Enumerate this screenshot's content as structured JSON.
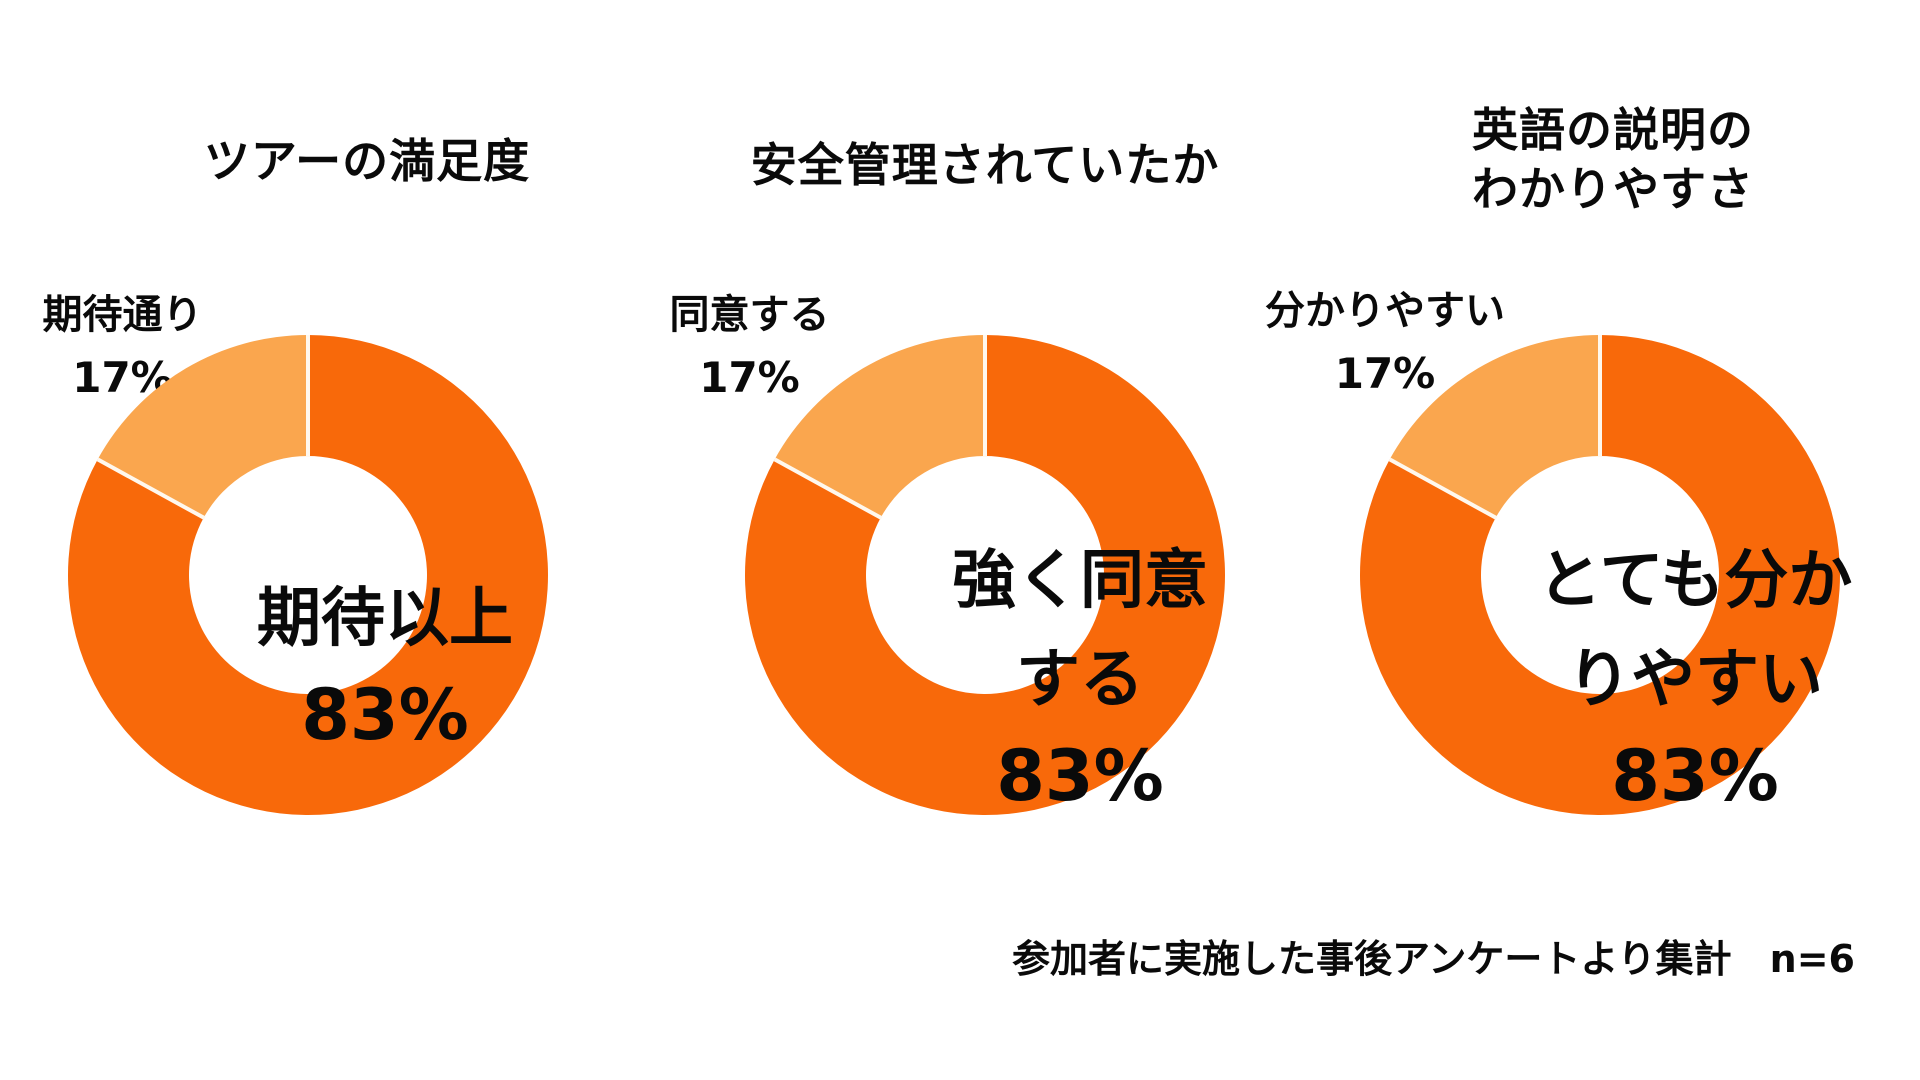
{
  "colors": {
    "background": "#FFFFFF",
    "segment_main": "#F8690A",
    "segment_light": "#FAA64E",
    "divider": "#FFF8EE",
    "text": "#0A0A0A"
  },
  "chart_data": [
    {
      "type": "donut",
      "title": "ツアーの満足度",
      "title_lines": [
        "ツアーの満足度"
      ],
      "segments": [
        {
          "label": "期待以上",
          "value": 83,
          "color": "#F8690A"
        },
        {
          "label": "期待通り",
          "value": 17,
          "color": "#FAA64E"
        }
      ],
      "center_label_lines": [
        "期待以上"
      ],
      "center_percent": "83%",
      "callout_label": "期待通り",
      "callout_percent": "17%"
    },
    {
      "type": "donut",
      "title": "安全管理されていたか",
      "title_lines": [
        "安全管理されていたか"
      ],
      "segments": [
        {
          "label": "強く同意する",
          "value": 83,
          "color": "#F8690A"
        },
        {
          "label": "同意する",
          "value": 17,
          "color": "#FAA64E"
        }
      ],
      "center_label_lines": [
        "強く同意",
        "する"
      ],
      "center_percent": "83%",
      "callout_label": "同意する",
      "callout_percent": "17%"
    },
    {
      "type": "donut",
      "title": "英語の説明の わかりやすさ",
      "title_lines": [
        "英語の説明の",
        "わかりやすさ"
      ],
      "segments": [
        {
          "label": "とても分かりやすい",
          "value": 83,
          "color": "#F8690A"
        },
        {
          "label": "分かりやすい",
          "value": 17,
          "color": "#FAA64E"
        }
      ],
      "center_label_lines": [
        "とても分か",
        "りやすい"
      ],
      "center_percent": "83%",
      "callout_label": "分かりやすい",
      "callout_percent": "17%"
    }
  ],
  "footnote": "参加者に実施した事後アンケートより集計　n=6"
}
